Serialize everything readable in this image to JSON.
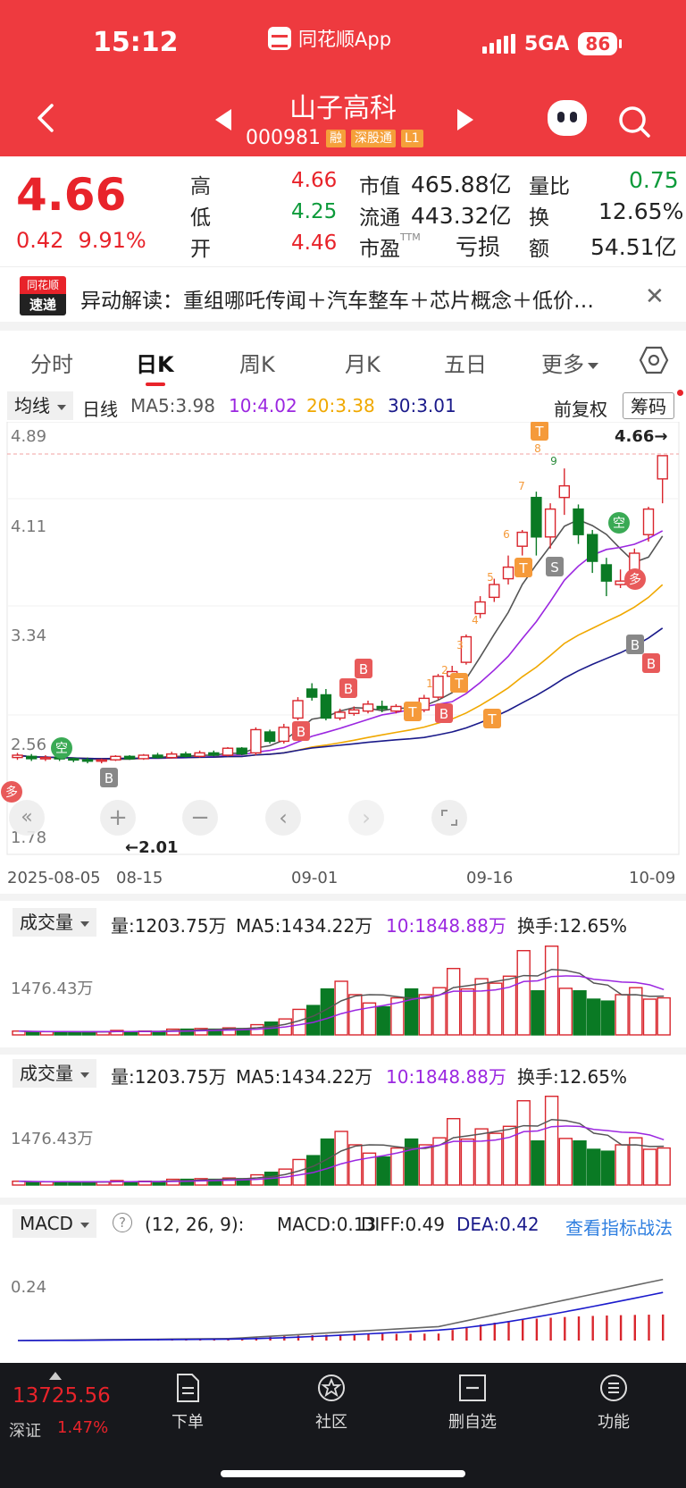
{
  "status_bar": {
    "time": "15:12",
    "app_name": "同花顺App",
    "network": "5GA",
    "battery": "86"
  },
  "header": {
    "stock_name": "山子高科",
    "stock_code": "000981",
    "tags": [
      "融",
      "深股通",
      "L1"
    ]
  },
  "quote": {
    "price": "4.66",
    "change": "0.42",
    "change_pct": "9.91%",
    "high_label": "高",
    "high": "4.66",
    "low_label": "低",
    "low": "4.25",
    "open_label": "开",
    "open": "4.46",
    "mktcap_label": "市值",
    "mktcap": "465.88亿",
    "float_label": "流通",
    "float": "443.32亿",
    "pe_label": "市盈",
    "pe_sup": "TTM",
    "pe": "亏损",
    "vr_label": "量比",
    "vr": "0.75",
    "turnover_label": "换",
    "turnover": "12.65%",
    "amount_label": "额",
    "amount": "54.51亿"
  },
  "news": {
    "logo_top": "同花顺",
    "logo_bottom": "速递",
    "text": "异动解读：重组哪吒传闻＋汽车整车＋芯片概念＋低价…"
  },
  "tabs": [
    "分时",
    "日K",
    "周K",
    "月K",
    "五日",
    "更多"
  ],
  "ma": {
    "dropdown": "均线",
    "period": "日线",
    "ma5": "MA5:3.98",
    "ma10": "10:4.02",
    "ma20": "20:3.38",
    "ma30": "30:3.01",
    "adjust": "前复权",
    "chip": "筹码",
    "colors": {
      "ma5": "#555555",
      "ma10": "#9b27e0",
      "ma20": "#f0a800",
      "ma30": "#1a1a8a"
    }
  },
  "kchart": {
    "y_labels": [
      "4.89",
      "4.11",
      "3.34",
      "2.56",
      "1.78"
    ],
    "x_labels": [
      "2025-08-05",
      "08-15",
      "09-01",
      "09-16",
      "10-09"
    ],
    "last_price_label": "4.66→",
    "low_price_label": "←2.01",
    "signal_kong": "空",
    "signal_duo": "多",
    "signal_b": "B",
    "signal_s": "S",
    "signal_t": "T",
    "nine_nums": [
      "1",
      "2",
      "3",
      "4",
      "5",
      "6",
      "7",
      "8",
      "9"
    ]
  },
  "volume": {
    "dropdown": "成交量",
    "vol": "量:1203.75万",
    "ma5": "MA5:1434.22万",
    "ma10": "10:1848.88万",
    "turnover": "换手:12.65%",
    "y_label": "1476.43万"
  },
  "macd": {
    "dropdown": "MACD",
    "help": "?",
    "params": "(12, 26, 9):",
    "macd": "MACD:0.13",
    "diff": "DIFF:0.49",
    "dea": "DEA:0.42",
    "strategy_link": "查看指标战法",
    "y_label": "0.24"
  },
  "bottom": {
    "index_value": "13725.56",
    "index_name": "深证",
    "index_pct": "1.47%",
    "nav": [
      "下单",
      "社区",
      "删自选",
      "功能"
    ]
  }
}
